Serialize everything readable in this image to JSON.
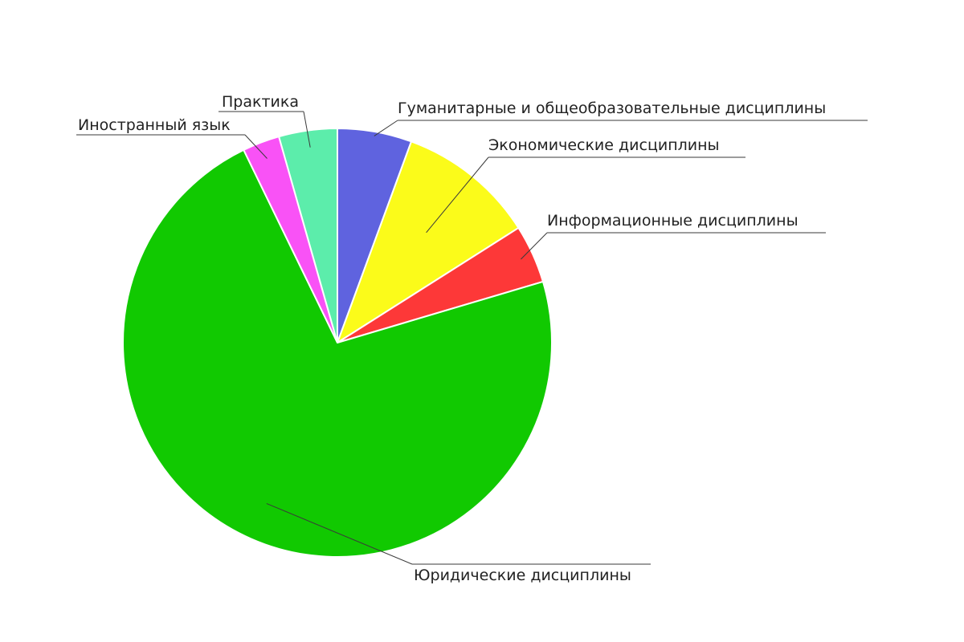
{
  "chart_data": {
    "type": "pie",
    "title": "",
    "start_angle_deg": 0,
    "direction": "clockwise",
    "slices": [
      {
        "name": "Гуманитарные и общеобразовательные дисциплины",
        "value": 5.6,
        "color": "#5f63df"
      },
      {
        "name": "Экономические дисциплины",
        "value": 10.4,
        "color": "#fbfb1a"
      },
      {
        "name": "Информационные дисциплины",
        "value": 4.4,
        "color": "#fd3838"
      },
      {
        "name": "Юридические дисциплины",
        "value": 72.4,
        "color": "#11c901"
      },
      {
        "name": "Иностранный язык",
        "value": 2.8,
        "color": "#f952f6"
      },
      {
        "name": "Практика",
        "value": 4.4,
        "color": "#5cedab"
      }
    ]
  }
}
